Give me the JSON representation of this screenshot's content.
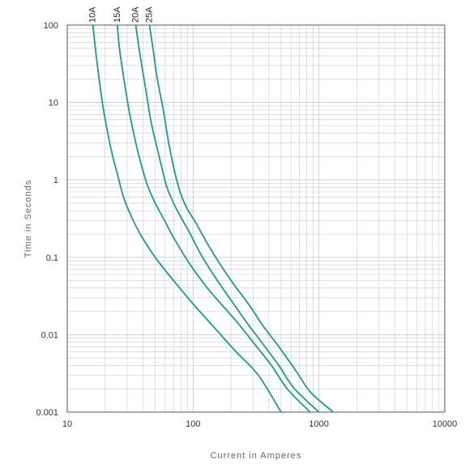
{
  "chart_data": {
    "type": "line",
    "title": "",
    "xlabel": "Current in Amperes",
    "ylabel": "Time in Seconds",
    "x_scale": "log",
    "y_scale": "log",
    "xlim": [
      10,
      10000
    ],
    "ylim": [
      0.001,
      100
    ],
    "x_ticks": [
      10,
      100,
      1000,
      10000
    ],
    "x_tick_labels": [
      "10",
      "100",
      "1000",
      "10000"
    ],
    "y_ticks": [
      0.001,
      0.01,
      0.1,
      1,
      10,
      100
    ],
    "y_tick_labels": [
      "0.001",
      "0.01",
      "0.1",
      "1",
      "10",
      "100"
    ],
    "grid": true,
    "line_color": "#1a9a90",
    "grid_color": "#cccccc",
    "series": [
      {
        "name": "10A",
        "points": [
          [
            16,
            100
          ],
          [
            17,
            40
          ],
          [
            19,
            10
          ],
          [
            21,
            4
          ],
          [
            23,
            2
          ],
          [
            25,
            1.2
          ],
          [
            28,
            0.6
          ],
          [
            32,
            0.35
          ],
          [
            38,
            0.2
          ],
          [
            50,
            0.1
          ],
          [
            70,
            0.05
          ],
          [
            100,
            0.025
          ],
          [
            150,
            0.012
          ],
          [
            220,
            0.006
          ],
          [
            330,
            0.003
          ],
          [
            500,
            0.001
          ]
        ]
      },
      {
        "name": "15A",
        "points": [
          [
            25,
            100
          ],
          [
            26,
            50
          ],
          [
            29,
            15
          ],
          [
            32,
            6
          ],
          [
            36,
            2.5
          ],
          [
            40,
            1.3
          ],
          [
            44,
            0.8
          ],
          [
            50,
            0.5
          ],
          [
            58,
            0.32
          ],
          [
            70,
            0.18
          ],
          [
            95,
            0.08
          ],
          [
            130,
            0.04
          ],
          [
            160,
            0.027
          ],
          [
            220,
            0.015
          ],
          [
            300,
            0.008
          ],
          [
            420,
            0.004
          ],
          [
            560,
            0.002
          ],
          [
            850,
            0.001
          ]
        ]
      },
      {
        "name": "20A",
        "points": [
          [
            35,
            100
          ],
          [
            38,
            40
          ],
          [
            42,
            15
          ],
          [
            46,
            6
          ],
          [
            52,
            2.5
          ],
          [
            58,
            1.2
          ],
          [
            62,
            0.8
          ],
          [
            70,
            0.5
          ],
          [
            80,
            0.33
          ],
          [
            95,
            0.2
          ],
          [
            115,
            0.11
          ],
          [
            150,
            0.055
          ],
          [
            200,
            0.028
          ],
          [
            270,
            0.014
          ],
          [
            350,
            0.008
          ],
          [
            480,
            0.004
          ],
          [
            640,
            0.002
          ],
          [
            1000,
            0.001
          ]
        ]
      },
      {
        "name": "25A",
        "points": [
          [
            45,
            100
          ],
          [
            48,
            50
          ],
          [
            52,
            20
          ],
          [
            58,
            8
          ],
          [
            64,
            3
          ],
          [
            72,
            1.2
          ],
          [
            80,
            0.65
          ],
          [
            90,
            0.42
          ],
          [
            105,
            0.28
          ],
          [
            130,
            0.15
          ],
          [
            165,
            0.08
          ],
          [
            210,
            0.045
          ],
          [
            280,
            0.024
          ],
          [
            360,
            0.013
          ],
          [
            480,
            0.007
          ],
          [
            650,
            0.0035
          ],
          [
            860,
            0.0018
          ],
          [
            1300,
            0.001
          ]
        ]
      }
    ]
  }
}
